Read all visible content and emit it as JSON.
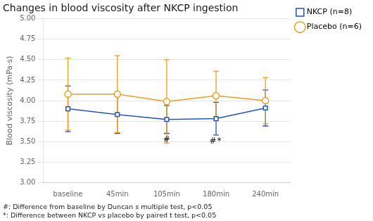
{
  "chart_data": {
    "type": "line",
    "title": "Changes in blood viscosity after NKCP ingestion",
    "y_label": "Blood viscosity (mPa·s)",
    "categories": [
      "baseline",
      "45min",
      "105min",
      "180min",
      "240min"
    ],
    "series": [
      {
        "name": "NKCP (n=8)",
        "color": "#2255bb",
        "marker": "square",
        "values": [
          3.9,
          3.83,
          3.77,
          3.78,
          3.91
        ],
        "error_lo": [
          0.28,
          0.23,
          0.17,
          0.2,
          0.22
        ],
        "error_hi": [
          0.28,
          0.23,
          0.17,
          0.2,
          0.22
        ]
      },
      {
        "name": "Placebo (n=6)",
        "color": "#e8a020",
        "marker": "circle",
        "values": [
          4.08,
          4.08,
          3.99,
          4.06,
          4.0
        ],
        "error_lo": [
          0.44,
          0.47,
          0.51,
          0.3,
          0.28
        ],
        "error_hi": [
          0.44,
          0.47,
          0.51,
          0.3,
          0.28
        ]
      }
    ],
    "ylim": [
      3.0,
      5.0
    ],
    "yticks": [
      {
        "value": 3.0,
        "label": "3.00"
      },
      3.25,
      {
        "value": 3.5,
        "label": "3.50"
      },
      3.75,
      {
        "value": 4.0,
        "label": "4.00"
      },
      4.25,
      {
        "value": 4.5,
        "label": "4.50"
      },
      4.75,
      {
        "value": 5.0,
        "label": "5.00"
      }
    ],
    "grid": true,
    "legend": "right",
    "annotations": [
      {
        "text": "#",
        "category": "105min",
        "series": "NKCP (n=8)"
      },
      {
        "text": "#",
        "category": "180min",
        "series": "NKCP (n=8)"
      },
      {
        "text": "*",
        "category": "180min",
        "series": "NKCP (n=8)"
      }
    ],
    "footnotes": [
      "#: Difference from baseline by Duncan s multiple test, p<0.05",
      "*: Difference between NKCP vs placebo by paired t test, p<0.05"
    ]
  }
}
